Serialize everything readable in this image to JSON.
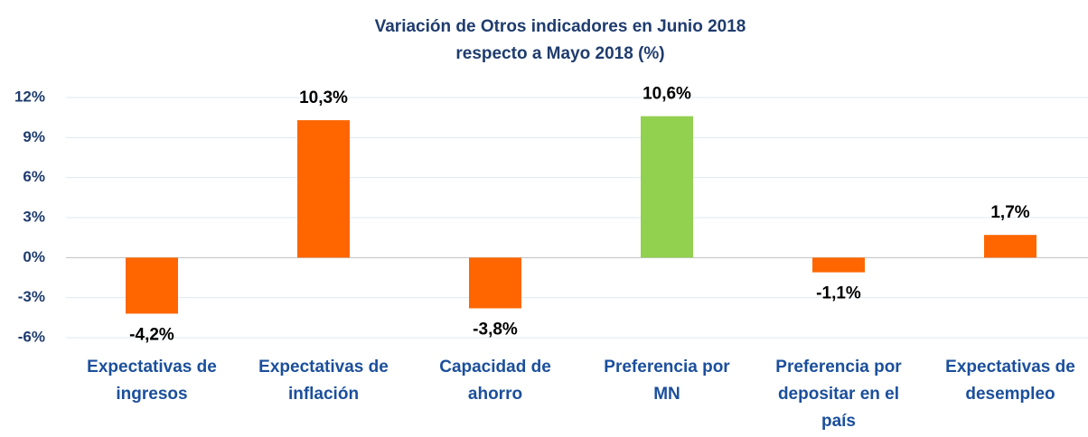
{
  "chart_data": {
    "type": "bar",
    "title_lines": [
      "Variación de Otros indicadores en Junio 2018",
      "respecto a Mayo 2018 (%)"
    ],
    "categories": [
      "Expectativas de ingresos",
      "Expectativas de inflación",
      "Capacidad de ahorro",
      "Preferencia por MN",
      "Preferencia por depositar en el país",
      "Expectativas de desempleo"
    ],
    "values": [
      -4.2,
      10.3,
      -3.8,
      10.6,
      -1.1,
      1.7
    ],
    "value_labels": [
      "-4,2%",
      "10,3%",
      "-3,8%",
      "10,6%",
      "-1,1%",
      "1,7%"
    ],
    "colors": [
      "#ff6600",
      "#ff6600",
      "#ff6600",
      "#92d050",
      "#ff6600",
      "#ff6600"
    ],
    "ylim": [
      -6,
      12
    ],
    "yticks": [
      {
        "value": -6,
        "label": "-6%"
      },
      {
        "value": -3,
        "label": "-3%"
      },
      {
        "value": 0,
        "label": "0%"
      },
      {
        "value": 3,
        "label": "3%"
      },
      {
        "value": 6,
        "label": "6%"
      },
      {
        "value": 9,
        "label": "9%"
      },
      {
        "value": 12,
        "label": "12%"
      }
    ],
    "grid": true
  }
}
